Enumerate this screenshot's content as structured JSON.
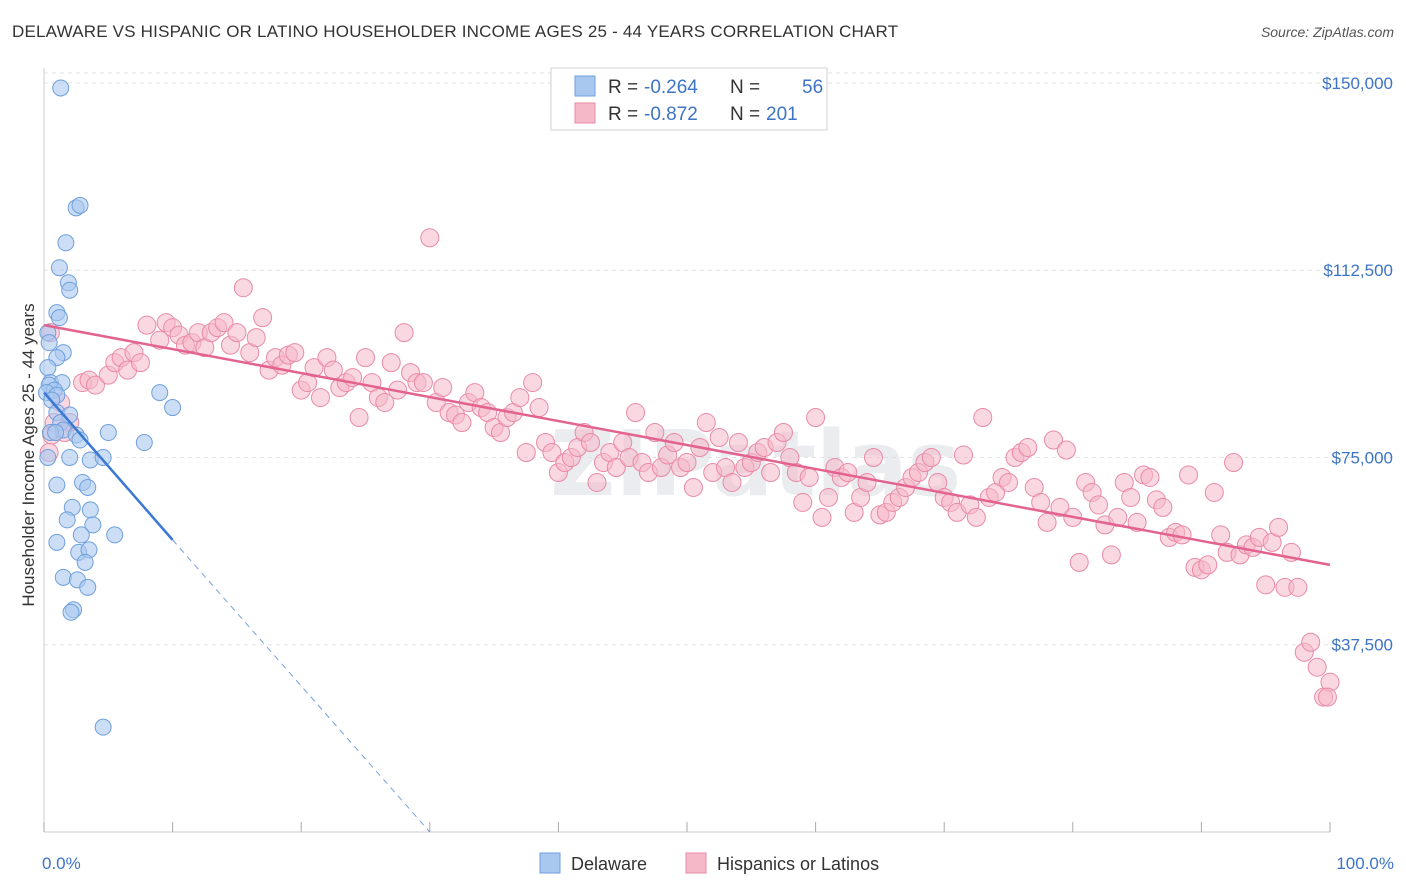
{
  "title": "DELAWARE VS HISPANIC OR LATINO HOUSEHOLDER INCOME AGES 25 - 44 YEARS CORRELATION CHART",
  "source": "Source: ZipAtlas.com",
  "watermark": "ZIPatlas",
  "legend": {
    "rows": [
      {
        "r_label": "R =",
        "r_value": "-0.264",
        "n_label": "N =",
        "n_value": "56",
        "color": "#a9c8f0"
      },
      {
        "r_label": "R =",
        "r_value": "-0.872",
        "n_label": "N =",
        "n_value": "201",
        "color": "#f5b8c8"
      }
    ]
  },
  "colors": {
    "delaware_fill": "#a9c8f0",
    "delaware_stroke": "#6f9fdc",
    "delaware_line": "#3a78d4",
    "hispanic_fill": "#f5b8c8",
    "hispanic_stroke": "#e98aa6",
    "hispanic_line": "#e2638f",
    "axis_label": "#3d74c5",
    "grid": "#e2e2e2"
  },
  "chart_data": {
    "type": "scatter",
    "title": "DELAWARE VS HISPANIC OR LATINO HOUSEHOLDER INCOME AGES 25 - 44 YEARS CORRELATION CHART",
    "xlabel": "",
    "ylabel": "Householder Income Ages 25 - 44 years",
    "xlim": [
      0,
      100
    ],
    "ylim": [
      0,
      153000
    ],
    "x_tick_labels": [
      "0.0%",
      "100.0%"
    ],
    "y_ticks": [
      37500,
      75000,
      112500,
      150000
    ],
    "y_tick_labels": [
      "$37,500",
      "$75,000",
      "$112,500",
      "$150,000"
    ],
    "grid": true,
    "legend_position": "bottom-center",
    "series": [
      {
        "name": "Delaware",
        "color": "#a9c8f0",
        "trend": {
          "x0": 0,
          "y0": 88000,
          "x1": 10,
          "y1": 58500,
          "dashed_to_x": 30,
          "dashed_to_y": 0
        },
        "points": [
          [
            1.3,
            149000
          ],
          [
            2.5,
            125000
          ],
          [
            2.8,
            125500
          ],
          [
            1.7,
            118000
          ],
          [
            1.2,
            113000
          ],
          [
            1.9,
            110000
          ],
          [
            2.0,
            108500
          ],
          [
            1.0,
            104000
          ],
          [
            1.2,
            103000
          ],
          [
            0.3,
            100000
          ],
          [
            0.4,
            98000
          ],
          [
            1.5,
            96000
          ],
          [
            1.0,
            95000
          ],
          [
            0.3,
            93000
          ],
          [
            0.5,
            90000
          ],
          [
            1.4,
            90000
          ],
          [
            0.4,
            89500
          ],
          [
            0.8,
            88500
          ],
          [
            0.2,
            88000
          ],
          [
            1.0,
            87500
          ],
          [
            0.6,
            86500
          ],
          [
            9.0,
            88000
          ],
          [
            10.0,
            85000
          ],
          [
            1.0,
            84000
          ],
          [
            2.0,
            83500
          ],
          [
            1.3,
            82000
          ],
          [
            1.5,
            80500
          ],
          [
            0.5,
            80000
          ],
          [
            0.9,
            80000
          ],
          [
            2.5,
            79500
          ],
          [
            5.0,
            80000
          ],
          [
            2.8,
            78500
          ],
          [
            7.8,
            78000
          ],
          [
            2.0,
            75000
          ],
          [
            3.6,
            74500
          ],
          [
            4.6,
            75000
          ],
          [
            1.0,
            69500
          ],
          [
            3.0,
            70000
          ],
          [
            3.4,
            69000
          ],
          [
            2.2,
            65000
          ],
          [
            3.6,
            64500
          ],
          [
            1.8,
            62500
          ],
          [
            3.8,
            61500
          ],
          [
            2.9,
            59500
          ],
          [
            5.5,
            59500
          ],
          [
            1.0,
            58000
          ],
          [
            2.7,
            56000
          ],
          [
            3.5,
            56500
          ],
          [
            3.2,
            54000
          ],
          [
            1.5,
            51000
          ],
          [
            2.6,
            50500
          ],
          [
            3.4,
            49000
          ],
          [
            2.3,
            44500
          ],
          [
            2.1,
            44000
          ],
          [
            4.6,
            21000
          ],
          [
            0.3,
            75000
          ]
        ]
      },
      {
        "name": "Hispanics or Latinos",
        "color": "#f5b8c8",
        "trend": {
          "x0": 0,
          "y0": 101500,
          "x1": 100,
          "y1": 53500
        },
        "points": [
          [
            0.5,
            100000
          ],
          [
            1.3,
            86000
          ],
          [
            0.8,
            82000
          ],
          [
            2.0,
            82000
          ],
          [
            1.6,
            80000
          ],
          [
            0.6,
            79500
          ],
          [
            0.4,
            76000
          ],
          [
            3.0,
            90000
          ],
          [
            3.5,
            90500
          ],
          [
            4.0,
            89500
          ],
          [
            5.0,
            91500
          ],
          [
            5.5,
            94000
          ],
          [
            6.0,
            95000
          ],
          [
            6.5,
            92500
          ],
          [
            7.0,
            96000
          ],
          [
            7.5,
            94000
          ],
          [
            8.0,
            101500
          ],
          [
            9.0,
            98500
          ],
          [
            9.5,
            102000
          ],
          [
            10.0,
            101000
          ],
          [
            10.5,
            99500
          ],
          [
            11.0,
            97500
          ],
          [
            11.5,
            98000
          ],
          [
            12.0,
            100000
          ],
          [
            12.5,
            97000
          ],
          [
            13.0,
            100000
          ],
          [
            13.5,
            101000
          ],
          [
            14.0,
            102000
          ],
          [
            14.5,
            97500
          ],
          [
            15.0,
            100000
          ],
          [
            15.5,
            109000
          ],
          [
            16.0,
            96000
          ],
          [
            16.5,
            99000
          ],
          [
            17.0,
            103000
          ],
          [
            17.5,
            92500
          ],
          [
            18.0,
            95000
          ],
          [
            18.5,
            93500
          ],
          [
            19.0,
            95500
          ],
          [
            19.5,
            96000
          ],
          [
            20.0,
            88500
          ],
          [
            20.5,
            90000
          ],
          [
            21.0,
            93000
          ],
          [
            21.5,
            87000
          ],
          [
            22.0,
            95000
          ],
          [
            22.5,
            92500
          ],
          [
            23.0,
            89000
          ],
          [
            23.5,
            90000
          ],
          [
            24.0,
            91000
          ],
          [
            24.5,
            83000
          ],
          [
            25.0,
            95000
          ],
          [
            25.5,
            90000
          ],
          [
            26.0,
            87000
          ],
          [
            26.5,
            86000
          ],
          [
            27.0,
            94000
          ],
          [
            27.5,
            88500
          ],
          [
            28.0,
            100000
          ],
          [
            28.5,
            92000
          ],
          [
            29.0,
            90000
          ],
          [
            29.5,
            90000
          ],
          [
            30.0,
            119000
          ],
          [
            30.5,
            86000
          ],
          [
            31.0,
            89000
          ],
          [
            31.5,
            84000
          ],
          [
            32.0,
            83500
          ],
          [
            32.5,
            82000
          ],
          [
            33.0,
            86000
          ],
          [
            33.5,
            88000
          ],
          [
            34.0,
            85000
          ],
          [
            34.5,
            84000
          ],
          [
            35.0,
            81000
          ],
          [
            35.5,
            80000
          ],
          [
            36.0,
            83000
          ],
          [
            36.5,
            84000
          ],
          [
            37.0,
            87000
          ],
          [
            37.5,
            76000
          ],
          [
            38.0,
            90000
          ],
          [
            38.5,
            85000
          ],
          [
            39.0,
            78000
          ],
          [
            39.5,
            76000
          ],
          [
            40.0,
            72000
          ],
          [
            40.5,
            74000
          ],
          [
            41.0,
            75000
          ],
          [
            41.5,
            77000
          ],
          [
            42.0,
            80000
          ],
          [
            42.5,
            78000
          ],
          [
            43.0,
            70000
          ],
          [
            43.5,
            74000
          ],
          [
            44.0,
            76000
          ],
          [
            44.5,
            73000
          ],
          [
            45.0,
            78000
          ],
          [
            45.5,
            75000
          ],
          [
            46.0,
            84000
          ],
          [
            46.5,
            74000
          ],
          [
            47.0,
            72000
          ],
          [
            47.5,
            80000
          ],
          [
            48.0,
            73000
          ],
          [
            48.5,
            75500
          ],
          [
            49.0,
            78000
          ],
          [
            49.5,
            73000
          ],
          [
            50.0,
            74000
          ],
          [
            50.5,
            69000
          ],
          [
            51.0,
            77000
          ],
          [
            51.5,
            82000
          ],
          [
            52.0,
            72000
          ],
          [
            52.5,
            79000
          ],
          [
            53.0,
            73000
          ],
          [
            53.5,
            70000
          ],
          [
            54.0,
            78000
          ],
          [
            54.5,
            73000
          ],
          [
            55.0,
            74000
          ],
          [
            55.5,
            76000
          ],
          [
            56.0,
            77000
          ],
          [
            56.5,
            72000
          ],
          [
            57.0,
            78000
          ],
          [
            57.5,
            80000
          ],
          [
            58.0,
            75000
          ],
          [
            58.5,
            72000
          ],
          [
            59.0,
            66000
          ],
          [
            59.5,
            71000
          ],
          [
            60.0,
            83000
          ],
          [
            60.5,
            63000
          ],
          [
            61.0,
            67000
          ],
          [
            61.5,
            73000
          ],
          [
            62.0,
            71000
          ],
          [
            62.5,
            72000
          ],
          [
            63.0,
            64000
          ],
          [
            63.5,
            67000
          ],
          [
            64.0,
            70000
          ],
          [
            64.5,
            75000
          ],
          [
            65.0,
            63500
          ],
          [
            65.5,
            64000
          ],
          [
            66.0,
            66000
          ],
          [
            66.5,
            67000
          ],
          [
            67.0,
            69000
          ],
          [
            67.5,
            71000
          ],
          [
            68.0,
            72000
          ],
          [
            68.5,
            74000
          ],
          [
            69.0,
            75000
          ],
          [
            69.5,
            70000
          ],
          [
            70.0,
            67000
          ],
          [
            70.5,
            66000
          ],
          [
            71.0,
            64000
          ],
          [
            71.5,
            75500
          ],
          [
            72.0,
            65500
          ],
          [
            72.5,
            63000
          ],
          [
            73.0,
            83000
          ],
          [
            73.5,
            67000
          ],
          [
            74.0,
            68000
          ],
          [
            74.5,
            71000
          ],
          [
            75.0,
            70000
          ],
          [
            75.5,
            75000
          ],
          [
            76.0,
            76000
          ],
          [
            76.5,
            77000
          ],
          [
            77.0,
            69000
          ],
          [
            77.5,
            66000
          ],
          [
            78.0,
            62000
          ],
          [
            78.5,
            78500
          ],
          [
            79.0,
            65000
          ],
          [
            79.5,
            76500
          ],
          [
            80.0,
            63000
          ],
          [
            80.5,
            54000
          ],
          [
            81.0,
            70000
          ],
          [
            81.5,
            68000
          ],
          [
            82.0,
            65500
          ],
          [
            82.5,
            61500
          ],
          [
            83.0,
            55500
          ],
          [
            83.5,
            63000
          ],
          [
            84.0,
            70000
          ],
          [
            84.5,
            67000
          ],
          [
            85.0,
            62000
          ],
          [
            85.5,
            71500
          ],
          [
            86.0,
            71000
          ],
          [
            86.5,
            66500
          ],
          [
            87.0,
            65000
          ],
          [
            87.5,
            59000
          ],
          [
            88.0,
            60000
          ],
          [
            88.5,
            59500
          ],
          [
            89.0,
            71500
          ],
          [
            89.5,
            53000
          ],
          [
            90.0,
            52500
          ],
          [
            90.5,
            53500
          ],
          [
            91.0,
            68000
          ],
          [
            91.5,
            59500
          ],
          [
            92.0,
            56000
          ],
          [
            92.5,
            74000
          ],
          [
            93.0,
            55500
          ],
          [
            93.5,
            57500
          ],
          [
            94.0,
            57000
          ],
          [
            94.5,
            59000
          ],
          [
            95.0,
            49500
          ],
          [
            95.5,
            58000
          ],
          [
            96.0,
            61000
          ],
          [
            96.5,
            49000
          ],
          [
            97.0,
            56000
          ],
          [
            97.5,
            49000
          ],
          [
            98.0,
            36000
          ],
          [
            98.5,
            38000
          ],
          [
            99.0,
            33000
          ],
          [
            99.5,
            27000
          ],
          [
            100.0,
            30000
          ],
          [
            99.8,
            27000
          ]
        ]
      }
    ]
  },
  "bottom_legend": [
    {
      "label": "Delaware",
      "color": "#a9c8f0"
    },
    {
      "label": "Hispanics or Latinos",
      "color": "#f5b8c8"
    }
  ]
}
